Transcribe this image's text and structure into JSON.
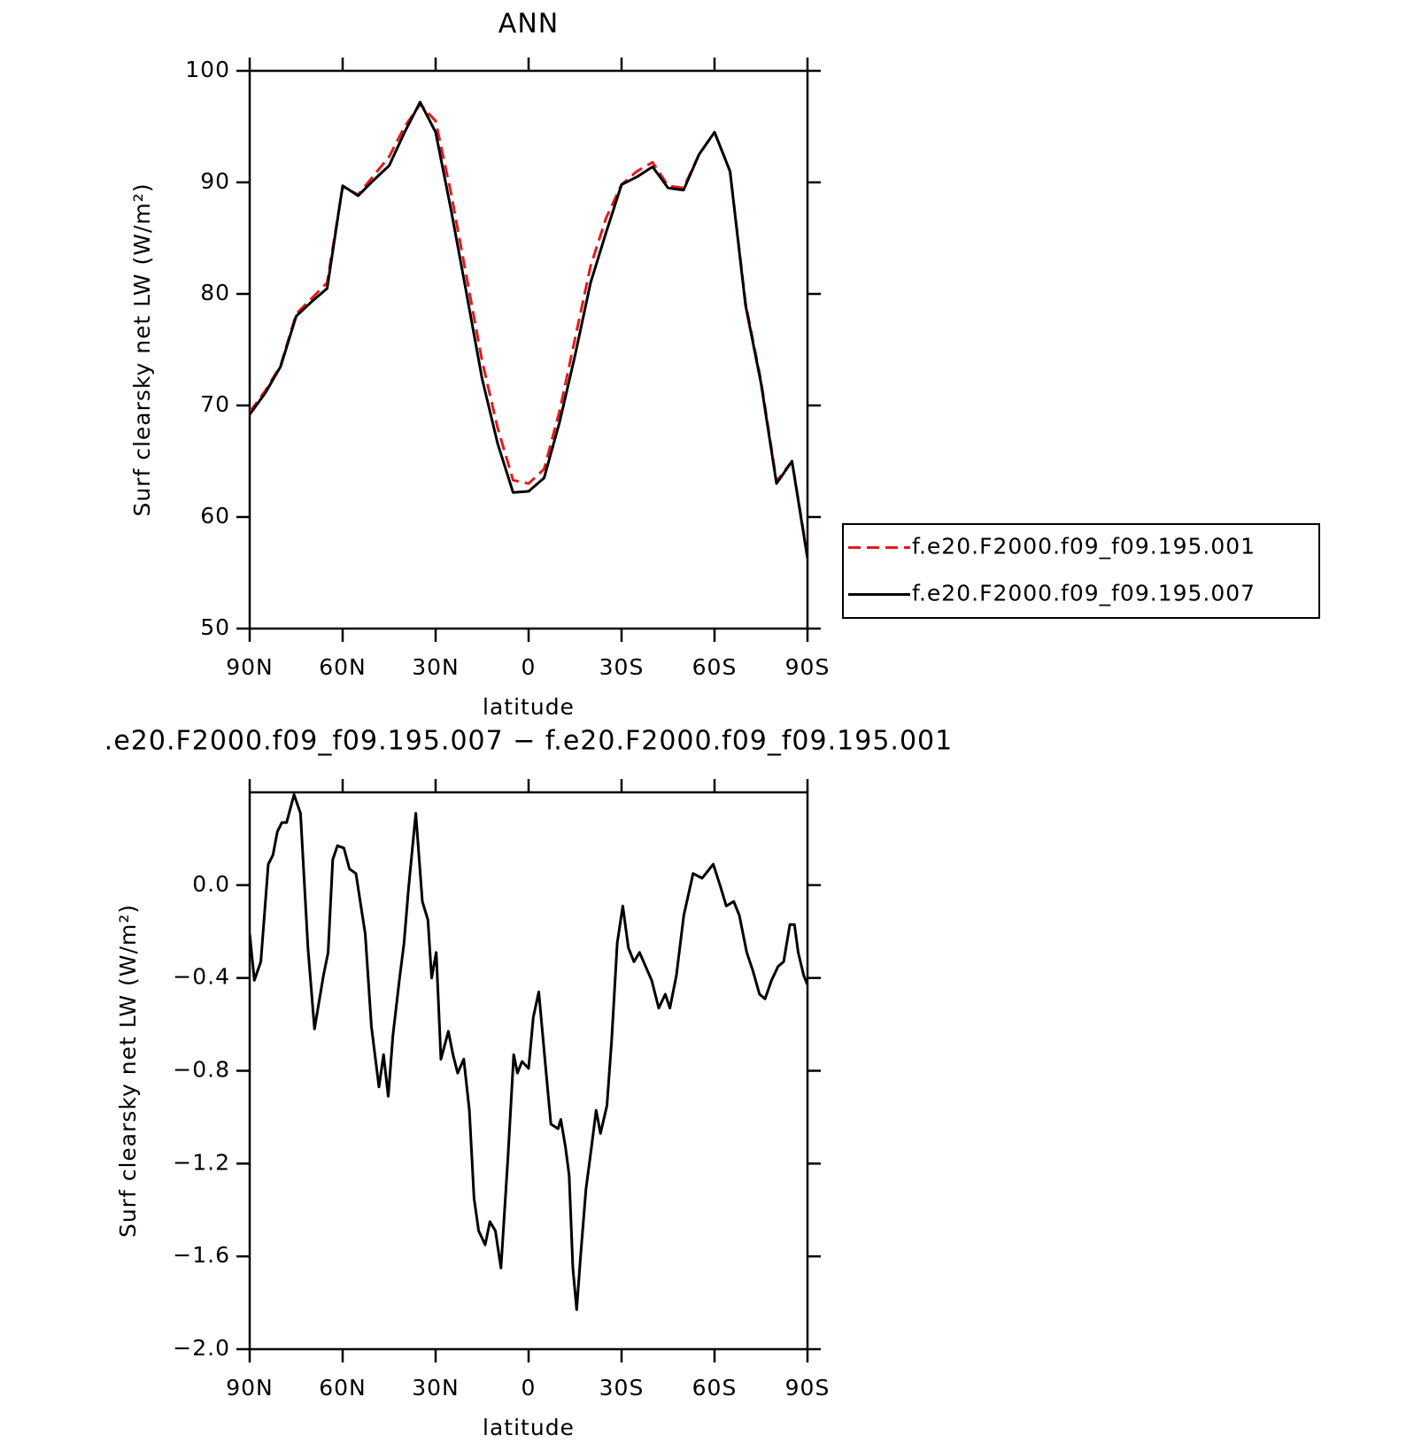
{
  "chart_data": [
    {
      "type": "line",
      "title": "ANN",
      "xlabel": "latitude",
      "ylabel": "Surf clearsky net LW (W/m²)",
      "x": [
        90,
        85,
        80,
        75,
        70,
        65,
        60,
        55,
        50,
        45,
        40,
        35,
        30,
        25,
        20,
        15,
        10,
        5,
        0,
        -5,
        -10,
        -15,
        -20,
        -25,
        -30,
        -35,
        -40,
        -45,
        -50,
        -55,
        -60,
        -65,
        -70,
        -75,
        -80,
        -85,
        -90
      ],
      "series": [
        {
          "name": "f.e20.F2000.f09_f09.195.001",
          "color": "#e31a1c",
          "linestyle": "dashed",
          "values": [
            69.4,
            71.3,
            73.6,
            78.2,
            79.6,
            81.0,
            89.6,
            88.9,
            90.6,
            92.3,
            95.0,
            97.0,
            95.5,
            89.0,
            81.5,
            74.0,
            68.0,
            63.3,
            63.0,
            64.3,
            69.5,
            76.0,
            82.5,
            86.8,
            89.8,
            91.0,
            91.8,
            89.7,
            89.5,
            92.5,
            94.5,
            91.0,
            79.2,
            72.2,
            63.2,
            65.0,
            56.5
          ]
        },
        {
          "name": "f.e20.F2000.f09_f09.195.007",
          "color": "#000000",
          "linestyle": "solid",
          "values": [
            69.2,
            71.1,
            73.5,
            78.0,
            79.3,
            80.5,
            89.7,
            88.8,
            90.2,
            91.5,
            94.5,
            97.2,
            94.5,
            87.5,
            80.0,
            72.4,
            66.6,
            62.2,
            62.3,
            63.5,
            68.5,
            74.5,
            81.0,
            85.5,
            89.8,
            90.5,
            91.4,
            89.5,
            89.3,
            92.5,
            94.5,
            91.0,
            79.0,
            72.0,
            63.0,
            65.0,
            56.3
          ]
        }
      ],
      "xlim": [
        90,
        -90
      ],
      "xticks": [
        {
          "value": 90,
          "label": "90N"
        },
        {
          "value": 60,
          "label": "60N"
        },
        {
          "value": 30,
          "label": "30N"
        },
        0,
        {
          "value": -30,
          "label": "30S"
        },
        {
          "value": -60,
          "label": "60S"
        },
        {
          "value": -90,
          "label": "90S"
        }
      ],
      "ylim": [
        50,
        100
      ],
      "yticks": [
        50,
        60,
        70,
        80,
        90,
        100
      ],
      "legend": "right"
    },
    {
      "type": "line",
      "title": ".e20.F2000.f09_f09.195.007 − f.e20.F2000.f09_f09.195.001",
      "xlabel": "latitude",
      "ylabel": "Surf clearsky net LW (W/m²)",
      "x": [
        90.0,
        88.5,
        86.4,
        84.0,
        82.5,
        81.1,
        79.6,
        78.1,
        75.7,
        73.6,
        71.2,
        69.1,
        66.2,
        64.7,
        63.2,
        61.7,
        59.6,
        57.8,
        55.7,
        52.7,
        50.7,
        48.3,
        46.8,
        45.3,
        43.8,
        41.7,
        40.2,
        38.7,
        36.4,
        34.3,
        32.5,
        31.3,
        29.8,
        28.3,
        25.9,
        24.4,
        22.9,
        20.9,
        19.1,
        17.6,
        16.1,
        14.0,
        12.5,
        10.7,
        8.9,
        6.6,
        4.8,
        3.6,
        2.1,
        0.0,
        -1.5,
        -3.3,
        -5.4,
        -7.2,
        -9.5,
        -10.4,
        -11.9,
        -13.1,
        -14.3,
        -15.5,
        -16.7,
        -18.5,
        -20.3,
        -21.8,
        -23.2,
        -25.3,
        -26.8,
        -28.6,
        -30.4,
        -32.2,
        -34.0,
        -35.8,
        -39.7,
        -42.0,
        -44.1,
        -45.6,
        -47.7,
        -50.1,
        -53.1,
        -56.0,
        -59.6,
        -62.0,
        -63.8,
        -66.2,
        -68.0,
        -70.4,
        -72.4,
        -74.5,
        -76.3,
        -78.4,
        -80.5,
        -82.3,
        -84.3,
        -85.8,
        -87.0,
        -88.8,
        -90.0
      ],
      "series": [
        {
          "color": "#000000",
          "linestyle": "solid",
          "values": [
            -0.21,
            -0.41,
            -0.33,
            0.09,
            0.13,
            0.23,
            0.27,
            0.27,
            0.39,
            0.31,
            -0.27,
            -0.62,
            -0.39,
            -0.29,
            0.11,
            0.17,
            0.16,
            0.07,
            0.05,
            -0.21,
            -0.61,
            -0.87,
            -0.73,
            -0.91,
            -0.65,
            -0.41,
            -0.25,
            -0.01,
            0.31,
            -0.07,
            -0.15,
            -0.4,
            -0.29,
            -0.75,
            -0.63,
            -0.73,
            -0.81,
            -0.75,
            -0.97,
            -1.35,
            -1.49,
            -1.55,
            -1.45,
            -1.49,
            -1.65,
            -1.16,
            -0.73,
            -0.81,
            -0.76,
            -0.79,
            -0.57,
            -0.46,
            -0.77,
            -1.03,
            -1.05,
            -1.01,
            -1.13,
            -1.25,
            -1.65,
            -1.83,
            -1.61,
            -1.31,
            -1.13,
            -0.97,
            -1.07,
            -0.95,
            -0.67,
            -0.25,
            -0.09,
            -0.27,
            -0.33,
            -0.29,
            -0.41,
            -0.53,
            -0.47,
            -0.53,
            -0.39,
            -0.13,
            0.05,
            0.03,
            0.09,
            -0.01,
            -0.09,
            -0.07,
            -0.13,
            -0.29,
            -0.37,
            -0.47,
            -0.49,
            -0.41,
            -0.35,
            -0.33,
            -0.17,
            -0.17,
            -0.29,
            -0.39,
            -0.43
          ]
        }
      ],
      "xlim": [
        90,
        -90
      ],
      "xticks": [
        {
          "value": 90,
          "label": "90N"
        },
        {
          "value": 60,
          "label": "60N"
        },
        {
          "value": 30,
          "label": "30N"
        },
        0,
        {
          "value": -30,
          "label": "30S"
        },
        {
          "value": -60,
          "label": "60S"
        },
        {
          "value": -90,
          "label": "90S"
        }
      ],
      "ylim": [
        -2.0,
        0.4
      ],
      "yticks": [
        {
          "value": -2.0,
          "label": "−2.0"
        },
        {
          "value": -1.6,
          "label": "−1.6"
        },
        {
          "value": -1.2,
          "label": "−1.2"
        },
        {
          "value": -0.8,
          "label": "−0.8"
        },
        {
          "value": -0.4,
          "label": "−0.4"
        },
        {
          "value": 0,
          "label": "0.0"
        }
      ]
    }
  ]
}
